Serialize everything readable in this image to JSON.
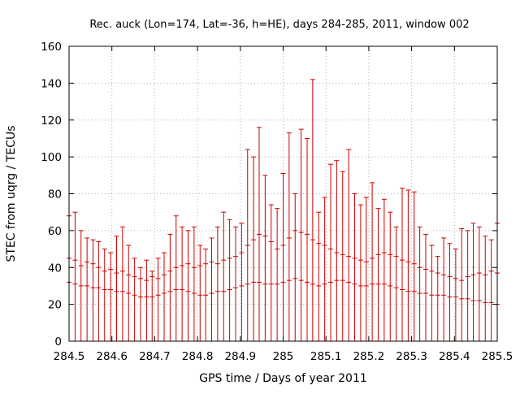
{
  "chart_data": {
    "type": "scatter",
    "style": "error bars",
    "title": "Rec. auck (Lon=174, Lat=-36, h=HE), days 284-285, 2011, window 002",
    "xlabel": "GPS time / Days of year 2011",
    "ylabel": "STEC from uqrg / TECUs",
    "xlim": [
      284.5,
      285.5
    ],
    "ylim": [
      0,
      160
    ],
    "grid": true,
    "xticks": [
      "284.5",
      "284.6",
      "284.7",
      "284.8",
      "284.9",
      "285",
      "285.1",
      "285.2",
      "285.3",
      "285.4",
      "285.5"
    ],
    "yticks": [
      "0",
      "20",
      "40",
      "60",
      "80",
      "100",
      "120",
      "140",
      "160"
    ],
    "color": "#cc0000",
    "series": [
      {
        "x": [
          284.5,
          284.514,
          284.528,
          284.542,
          284.556,
          284.569,
          284.583,
          284.597,
          284.611,
          284.625,
          284.639,
          284.653,
          284.667,
          284.681,
          284.694,
          284.708,
          284.722,
          284.736,
          284.75,
          284.764,
          284.778,
          284.792,
          284.806,
          284.819,
          284.833,
          284.847,
          284.861,
          284.875,
          284.889,
          284.903,
          284.917,
          284.931,
          284.944,
          284.958,
          284.972,
          284.986,
          285.0,
          285.014,
          285.028,
          285.042,
          285.056,
          285.069,
          285.083,
          285.097,
          285.111,
          285.125,
          285.139,
          285.153,
          285.167,
          285.181,
          285.194,
          285.208,
          285.222,
          285.236,
          285.25,
          285.264,
          285.278,
          285.292,
          285.306,
          285.319,
          285.333,
          285.347,
          285.361,
          285.375,
          285.389,
          285.403,
          285.417,
          285.431,
          285.444,
          285.458,
          285.472,
          285.486,
          285.5
        ],
        "y": [
          45,
          44,
          41,
          43,
          42,
          40,
          38,
          39,
          37,
          38,
          36,
          35,
          34,
          33,
          35,
          34,
          36,
          38,
          40,
          41,
          42,
          40,
          41,
          42,
          43,
          42,
          44,
          45,
          46,
          48,
          52,
          55,
          58,
          57,
          54,
          50,
          52,
          56,
          60,
          59,
          58,
          55,
          53,
          52,
          50,
          48,
          47,
          46,
          45,
          44,
          43,
          45,
          47,
          48,
          47,
          46,
          44,
          43,
          42,
          40,
          39,
          38,
          37,
          36,
          35,
          34,
          33,
          35,
          36,
          37,
          36,
          38,
          37
        ],
        "ymin": [
          32,
          31,
          30,
          30,
          29,
          29,
          28,
          28,
          27,
          27,
          26,
          25,
          24,
          24,
          24,
          25,
          26,
          27,
          28,
          28,
          27,
          26,
          25,
          25,
          26,
          27,
          27,
          28,
          29,
          30,
          31,
          32,
          32,
          31,
          31,
          31,
          32,
          33,
          34,
          33,
          32,
          31,
          30,
          31,
          32,
          33,
          33,
          32,
          31,
          30,
          30,
          31,
          31,
          31,
          30,
          29,
          28,
          27,
          27,
          26,
          26,
          25,
          25,
          25,
          24,
          24,
          23,
          23,
          22,
          22,
          21,
          21,
          20
        ],
        "ymax": [
          68,
          70,
          60,
          56,
          55,
          54,
          50,
          48,
          57,
          62,
          52,
          45,
          40,
          44,
          38,
          45,
          48,
          58,
          68,
          62,
          60,
          62,
          52,
          50,
          56,
          62,
          70,
          66,
          62,
          64,
          104,
          100,
          116,
          90,
          74,
          72,
          91,
          113,
          80,
          115,
          110,
          142,
          70,
          78,
          96,
          98,
          92,
          104,
          80,
          74,
          78,
          86,
          72,
          77,
          70,
          62,
          83,
          82,
          81,
          62,
          58,
          52,
          46,
          56,
          53,
          50,
          61,
          60,
          64,
          62,
          57,
          55,
          64
        ]
      }
    ]
  }
}
